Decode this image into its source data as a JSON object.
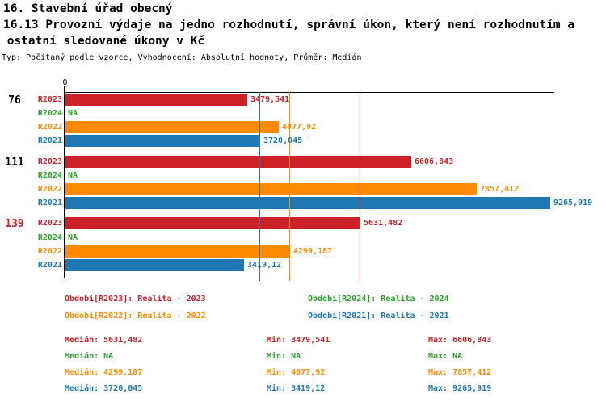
{
  "titles": {
    "line1": "16. Stavební úřad obecný",
    "line2": "16.13 Provozní výdaje na jedno rozhodnutí, správní úkon, který není rozhodnutím a",
    "line3": " ostatní sledované úkony v Kč",
    "meta": "Typ: Počítaný podle vzorce, Vyhodnocení: Absolutní hodnoty, Průměr: Medián"
  },
  "series_colors": {
    "R2023": "#CC2127",
    "R2024": "#2CA02C",
    "R2022": "#FF8A00",
    "R2021": "#1F77B4"
  },
  "chart_data": {
    "type": "bar",
    "orientation": "horizontal",
    "origin_label": "0",
    "xlim": [
      0,
      9328
    ],
    "grid": false,
    "groups": [
      {
        "label": "76",
        "label_color": "#000000",
        "rows": [
          {
            "series": "R2023",
            "value": 3479.541,
            "display": "3479,541"
          },
          {
            "series": "R2024",
            "value": null,
            "display": "NA"
          },
          {
            "series": "R2022",
            "value": 4077.92,
            "display": "4077,92"
          },
          {
            "series": "R2021",
            "value": 3720.045,
            "display": "3720,045"
          }
        ]
      },
      {
        "label": "111",
        "label_color": "#000000",
        "rows": [
          {
            "series": "R2023",
            "value": 6606.843,
            "display": "6606,843"
          },
          {
            "series": "R2024",
            "value": null,
            "display": "NA"
          },
          {
            "series": "R2022",
            "value": 7857.412,
            "display": "7857,412"
          },
          {
            "series": "R2021",
            "value": 9265.919,
            "display": "9265,919"
          }
        ]
      },
      {
        "label": "139",
        "label_color": "#CC2127",
        "rows": [
          {
            "series": "R2023",
            "value": 5631.482,
            "display": "5631,482"
          },
          {
            "series": "R2024",
            "value": null,
            "display": "NA"
          },
          {
            "series": "R2022",
            "value": 4299.187,
            "display": "4299,187"
          },
          {
            "series": "R2021",
            "value": 3419.12,
            "display": "3419,12"
          }
        ]
      }
    ],
    "median_lines": [
      {
        "series": "R2021",
        "value": 3720.045
      },
      {
        "series": "R2022",
        "value": 4299.187
      },
      {
        "series": "R2023",
        "value": 5631.482
      }
    ]
  },
  "legend": [
    {
      "series": "R2023",
      "label": "Období[R2023]: Realita - 2023"
    },
    {
      "series": "R2024",
      "label": "Období[R2024]: Realita - 2024"
    },
    {
      "series": "R2022",
      "label": "Období[R2022]: Realita - 2022"
    },
    {
      "series": "R2021",
      "label": "Období[R2021]: Realita - 2021"
    }
  ],
  "stats": [
    {
      "series": "R2023",
      "median": "Medián: 5631,482",
      "min": "Min: 3479,541",
      "max": "Max: 6606,843"
    },
    {
      "series": "R2024",
      "median": "Medián: NA",
      "min": "Min: NA",
      "max": "Max: NA"
    },
    {
      "series": "R2022",
      "median": "Medián: 4299,187",
      "min": "Min: 4077,92",
      "max": "Max: 7857,412"
    },
    {
      "series": "R2021",
      "median": "Medián: 3720,045",
      "min": "Min: 3419,12",
      "max": "Max: 9265,919"
    }
  ]
}
